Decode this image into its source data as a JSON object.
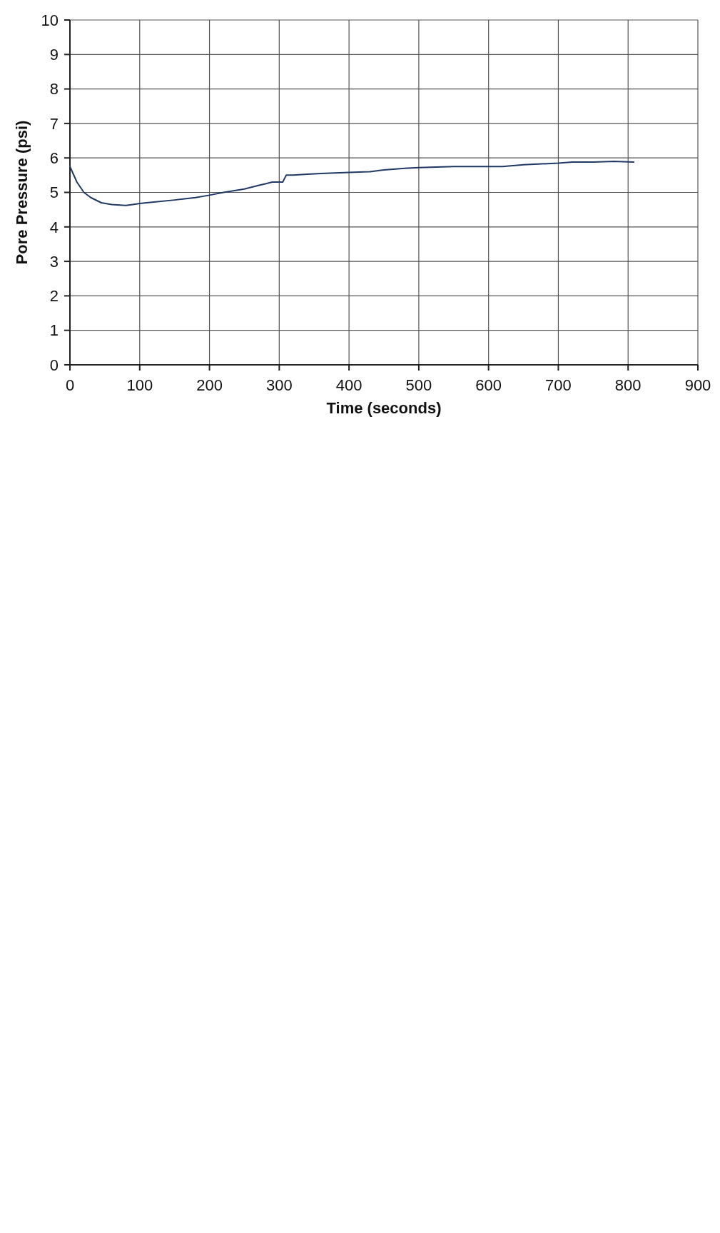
{
  "chart_data": {
    "type": "line",
    "xlabel": "Time (seconds)",
    "ylabel": "Pore Pressure (psi)",
    "xlim": [
      0,
      900
    ],
    "xticks": [
      0,
      100,
      200,
      300,
      400,
      500,
      600,
      700,
      800,
      900
    ],
    "ylim": [
      0,
      10
    ],
    "yticks": [
      0,
      1,
      2,
      3,
      4,
      5,
      6,
      7,
      8,
      9,
      10
    ],
    "grid": true,
    "series": [
      {
        "color": "#1f3864",
        "x": [
          0,
          10,
          20,
          30,
          45,
          60,
          80,
          90,
          100,
          120,
          150,
          180,
          200,
          220,
          250,
          270,
          280,
          290,
          305,
          310,
          320,
          340,
          360,
          400,
          430,
          450,
          480,
          500,
          550,
          600,
          620,
          650,
          700,
          720,
          750,
          780,
          808
        ],
        "values": [
          5.75,
          5.3,
          5.0,
          4.85,
          4.7,
          4.65,
          4.62,
          4.65,
          4.68,
          4.72,
          4.78,
          4.85,
          4.92,
          5.0,
          5.1,
          5.2,
          5.25,
          5.3,
          5.3,
          5.5,
          5.5,
          5.53,
          5.55,
          5.58,
          5.6,
          5.65,
          5.7,
          5.72,
          5.75,
          5.75,
          5.75,
          5.8,
          5.85,
          5.88,
          5.88,
          5.9,
          5.88
        ]
      }
    ]
  }
}
